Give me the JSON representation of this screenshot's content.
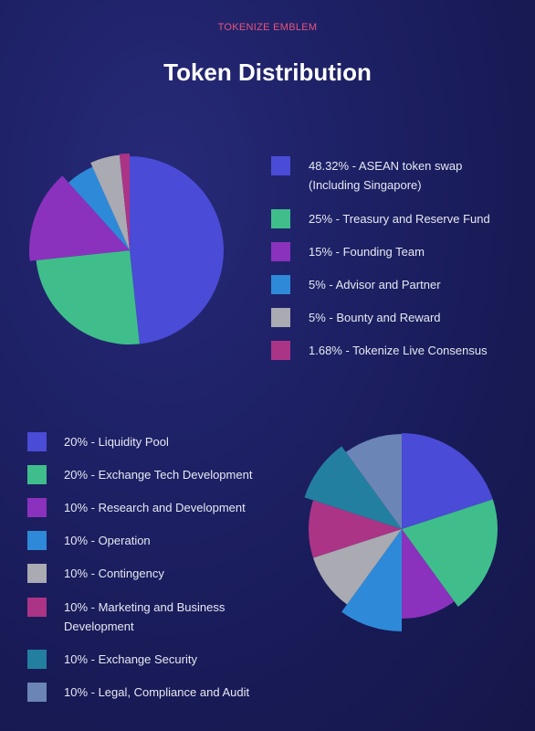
{
  "header": {
    "eyebrow": "TOKENIZE EMBLEM",
    "title": "Token Distribution"
  },
  "chart_data": [
    {
      "type": "pie",
      "title": "",
      "categories": [
        "ASEAN token swap (Including Singapore)",
        "Treasury and Reserve Fund",
        "Founding Team",
        "Advisor and Partner",
        "Bounty and Reward",
        "Tokenize Live Consensus"
      ],
      "values": [
        48.32,
        25,
        15,
        5,
        5,
        1.68
      ],
      "colors": [
        "#4a4bd6",
        "#3fbe8c",
        "#8a32bd",
        "#2e8ad8",
        "#a9aab2",
        "#ab3487"
      ],
      "legend_labels": [
        "48.32% - ASEAN token swap (Including Singapore)",
        "25% - Treasury and Reserve Fund",
        "15% - Founding Team",
        "5% - Advisor and Partner",
        "5% - Bounty and Reward",
        "1.68% - Tokenize Live Consensus"
      ],
      "legend_position": "right"
    },
    {
      "type": "pie",
      "title": "",
      "categories": [
        "Liquidity Pool",
        "Exchange Tech Development",
        "Research and Development",
        "Operation",
        "Contingency",
        "Marketing and Business Development",
        "Exchange Security",
        "Legal, Compliance and Audit"
      ],
      "values": [
        20,
        20,
        10,
        10,
        10,
        10,
        10,
        10
      ],
      "colors": [
        "#4a4bd6",
        "#3fbe8c",
        "#8a32bd",
        "#2e8ad8",
        "#a9aab2",
        "#ab3487",
        "#237fa0",
        "#6a85b6"
      ],
      "legend_labels": [
        "20% - Liquidity Pool",
        "20% - Exchange Tech Development",
        "10% - Research and Development",
        "10% - Operation",
        "10% - Contingency",
        "10% - Marketing and Business Development",
        "10% - Exchange Security",
        "10% - Legal, Compliance and Audit"
      ],
      "legend_position": "left"
    }
  ]
}
